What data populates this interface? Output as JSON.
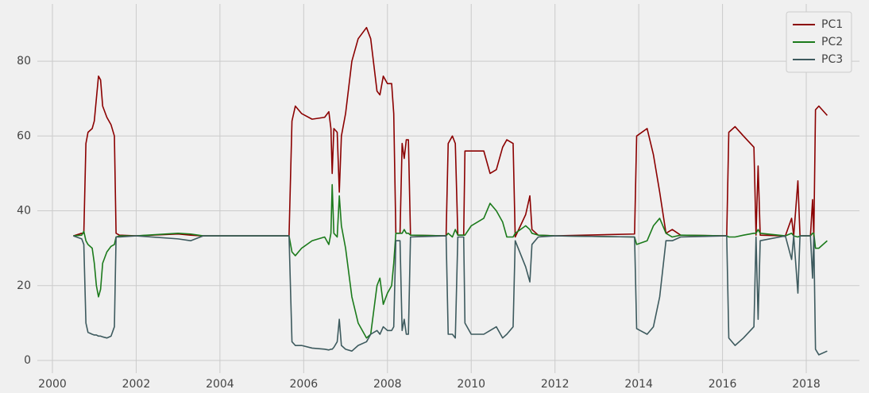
{
  "chart_data": {
    "type": "line",
    "x": [
      2000.5,
      2000.7,
      2000.75,
      2000.8,
      2000.85,
      2000.95,
      2001.0,
      2001.05,
      2001.1,
      2001.15,
      2001.2,
      2001.3,
      2001.4,
      2001.48,
      2001.52,
      2001.6,
      2002.0,
      2003.0,
      2003.3,
      2003.6,
      2005.65,
      2005.72,
      2005.8,
      2005.95,
      2006.2,
      2006.5,
      2006.6,
      2006.65,
      2006.68,
      2006.72,
      2006.8,
      2006.85,
      2006.9,
      2007.0,
      2007.15,
      2007.3,
      2007.5,
      2007.6,
      2007.75,
      2007.82,
      2007.9,
      2008.0,
      2008.1,
      2008.15,
      2008.2,
      2008.3,
      2008.35,
      2008.4,
      2008.45,
      2008.5,
      2008.55,
      2009.4,
      2009.45,
      2009.55,
      2009.62,
      2009.68,
      2009.82,
      2009.85,
      2010.0,
      2010.3,
      2010.45,
      2010.6,
      2010.75,
      2010.85,
      2011.0,
      2011.05,
      2011.3,
      2011.4,
      2011.45,
      2011.6,
      2012.0,
      2013.9,
      2013.95,
      2014.2,
      2014.35,
      2014.5,
      2014.65,
      2014.8,
      2015.0,
      2016.1,
      2016.15,
      2016.3,
      2016.5,
      2016.75,
      2016.8,
      2016.85,
      2016.9,
      2017.5,
      2017.65,
      2017.7,
      2017.8,
      2017.85,
      2018.1,
      2018.15,
      2018.18,
      2018.22,
      2018.3,
      2018.5
    ],
    "series": [
      {
        "name": "PC1",
        "color": "#8b0000",
        "values": [
          33.3,
          34,
          34,
          58,
          61,
          62,
          64,
          70,
          76,
          75,
          68,
          65,
          63,
          60,
          34,
          33.5,
          33.3,
          33.8,
          33.5,
          33.3,
          33.3,
          64,
          68,
          66,
          64.5,
          65,
          66.5,
          62,
          50,
          62,
          61,
          45,
          60,
          66,
          80,
          86,
          89,
          86,
          72,
          71,
          76,
          74,
          74,
          66,
          34,
          34,
          58,
          54,
          59,
          59,
          33.5,
          33.3,
          58,
          60,
          58,
          33.5,
          33.5,
          56,
          56,
          56,
          50,
          51,
          57,
          59,
          58,
          33,
          39,
          44,
          35,
          33.5,
          33.3,
          33.8,
          60,
          62,
          55,
          45,
          34,
          35,
          33.5,
          33.3,
          61,
          62.5,
          60,
          57,
          33.5,
          52,
          33.5,
          33.3,
          38,
          33.3,
          48,
          33.3,
          33.3,
          43,
          33,
          67,
          68,
          65.5
        ]
      },
      {
        "name": "PC2",
        "color": "#1b7a1b",
        "values": [
          33.3,
          33.5,
          34.5,
          32,
          31,
          30,
          26,
          20,
          17,
          19,
          26,
          29,
          30.5,
          31,
          33,
          33.3,
          33.3,
          34,
          33.8,
          33.3,
          33.3,
          29,
          28,
          30,
          32,
          33,
          31,
          34,
          47,
          34,
          33,
          44,
          36,
          30,
          17,
          10,
          6,
          7,
          20,
          22,
          15,
          18,
          20,
          26,
          34,
          34,
          34,
          35,
          34,
          34,
          33.5,
          33.3,
          34,
          33,
          35,
          33.5,
          33.5,
          33.5,
          36,
          38,
          42,
          40,
          37,
          33,
          33,
          34,
          36,
          35,
          34,
          33.5,
          33.3,
          33,
          31,
          32,
          36,
          38,
          34,
          33,
          33.5,
          33.3,
          33,
          33,
          33.5,
          34,
          34,
          35,
          34,
          33.3,
          34,
          33.3,
          33,
          33.3,
          33.3,
          34,
          34,
          30,
          30,
          32
        ]
      },
      {
        "name": "PC3",
        "color": "#3d5a5e",
        "values": [
          33.3,
          32.5,
          31,
          10,
          7.5,
          7,
          6.8,
          6.8,
          6.5,
          6.5,
          6.3,
          6,
          6.5,
          9,
          33,
          33,
          33.3,
          32.5,
          32,
          33.3,
          33.3,
          5,
          4,
          4,
          3.3,
          3,
          2.8,
          3,
          3,
          3.5,
          5,
          11,
          4,
          3,
          2.5,
          4,
          5,
          7,
          8,
          7,
          9,
          8,
          8,
          9,
          32,
          32,
          8,
          11,
          7,
          7,
          33,
          33.3,
          7,
          7,
          6,
          33,
          33,
          10,
          7,
          7,
          8,
          9,
          6,
          7,
          9,
          32,
          25,
          21,
          31,
          33,
          33.3,
          33,
          8.5,
          7,
          9,
          17,
          32,
          32,
          33,
          33.3,
          6,
          4,
          6,
          9,
          33,
          11,
          32,
          33.3,
          27,
          33.3,
          18,
          33.3,
          33.3,
          22,
          33,
          3,
          1.5,
          2.5
        ]
      }
    ],
    "xlim": [
      1999.64,
      2019.27
    ],
    "ylim": [
      -3.4,
      95.3
    ],
    "xticks": [
      2000,
      2002,
      2004,
      2006,
      2008,
      2010,
      2012,
      2014,
      2016,
      2018
    ],
    "yticks": [
      0,
      20,
      40,
      60,
      80
    ],
    "grid": true,
    "legend": "upper right"
  }
}
